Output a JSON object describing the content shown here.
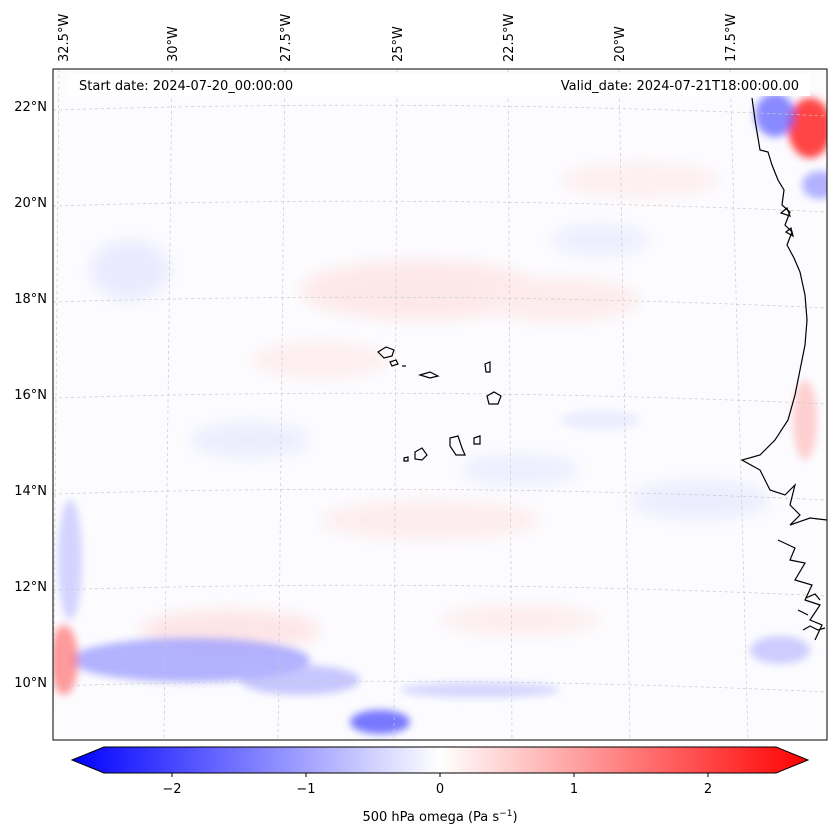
{
  "header": {
    "start_date": "Start date: 2024-07-20_00:00:00",
    "valid_date": "Valid_date: 2024-07-21T18:00:00.00"
  },
  "longitude_labels": [
    "32.5°W",
    "30°W",
    "27.5°W",
    "25°W",
    "22.5°W",
    "20°W",
    "17.5°W"
  ],
  "latitude_labels": [
    "22°N",
    "20°N",
    "18°N",
    "16°N",
    "14°N",
    "12°N",
    "10°N"
  ],
  "colorbar": {
    "ticks": [
      "−2",
      "−1",
      "0",
      "1",
      "2"
    ],
    "label": "500 hPa omega (Pa s",
    "label_sup": "−1",
    "label_close": ")",
    "min_color": "#0000ff",
    "mid_color": "#ffffff",
    "max_color": "#ff0000"
  },
  "colors": {
    "coastline": "#000000",
    "gridline": "#c8c8c8",
    "negative_field": "#6a6aff",
    "positive_field": "#ff8a8a"
  }
}
